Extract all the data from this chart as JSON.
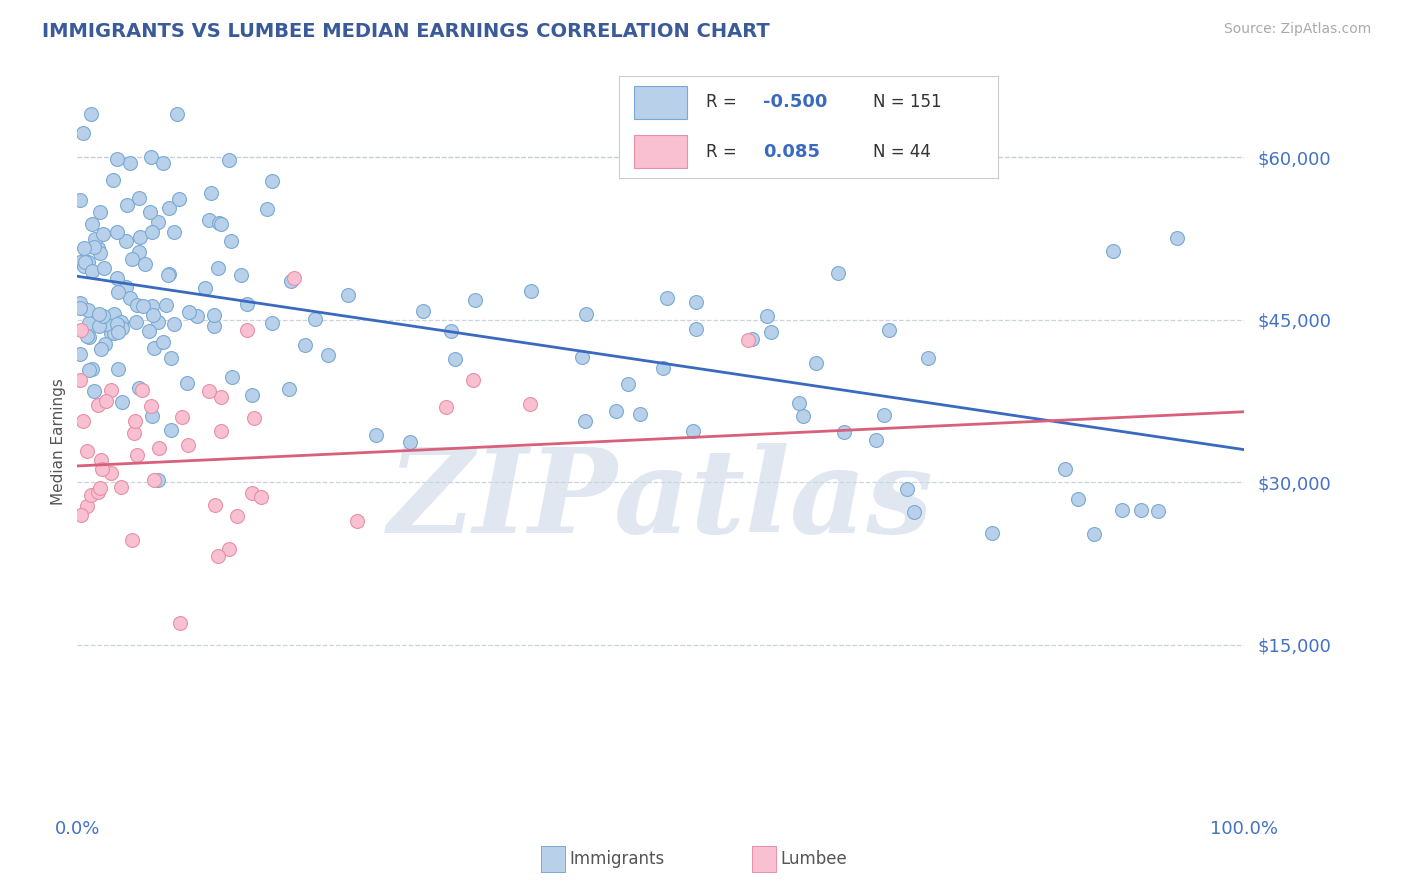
{
  "title": "IMMIGRANTS VS LUMBEE MEDIAN EARNINGS CORRELATION CHART",
  "source": "Source: ZipAtlas.com",
  "ylabel": "Median Earnings",
  "watermark": "ZIPatlas",
  "legend_immigrants": "Immigrants",
  "legend_lumbee": "Lumbee",
  "R_immigrants": -0.5,
  "N_immigrants": 151,
  "R_lumbee": 0.085,
  "N_lumbee": 44,
  "immigrant_fill": "#b8d0ea",
  "immigrant_edge": "#7aaad4",
  "lumbee_fill": "#f8c0d0",
  "lumbee_edge": "#e890a8",
  "immigrant_line_color": "#3a6abf",
  "lumbee_line_color": "#d8607a",
  "title_color": "#3a5a9a",
  "axis_label_color": "#555555",
  "tick_color": "#4472c4",
  "background_color": "#ffffff",
  "xlim": [
    0,
    1
  ],
  "ylim": [
    0,
    67500
  ],
  "yticks": [
    15000,
    30000,
    45000,
    60000
  ],
  "ytick_labels": [
    "$15,000",
    "$30,000",
    "$45,000",
    "$60,000"
  ],
  "xtick_positions": [
    0.0,
    1.0
  ],
  "xtick_labels": [
    "0.0%",
    "100.0%"
  ],
  "grid_color": "#c8cfd8",
  "trend_immigrant": [
    0.0,
    49000,
    1.0,
    33000
  ],
  "trend_lumbee": [
    0.0,
    31500,
    1.0,
    36500
  ],
  "watermark_color": "#c8d5e5",
  "watermark_alpha": 0.55
}
